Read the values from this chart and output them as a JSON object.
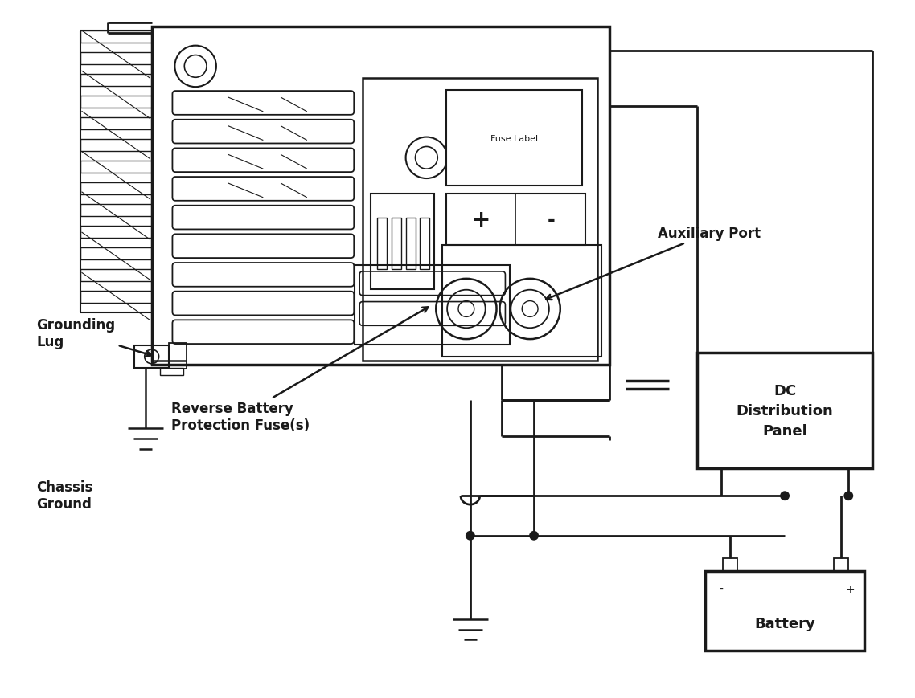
{
  "bg_color": "#ffffff",
  "lc": "#1a1a1a",
  "figsize": [
    11.38,
    8.7
  ],
  "dpi": 100,
  "labels": {
    "fuse_label": "Fuse Label",
    "aux_port": "Auxiliary Port",
    "grounding_lug": "Grounding\nLug",
    "reverse_battery": "Reverse Battery\nProtection Fuse(s)",
    "chassis_ground": "Chassis\nGround",
    "dc_panel": "DC\nDistribution\nPanel",
    "battery": "Battery",
    "plus": "+",
    "minus": "-",
    "bat_minus": "-",
    "bat_plus": "+"
  }
}
